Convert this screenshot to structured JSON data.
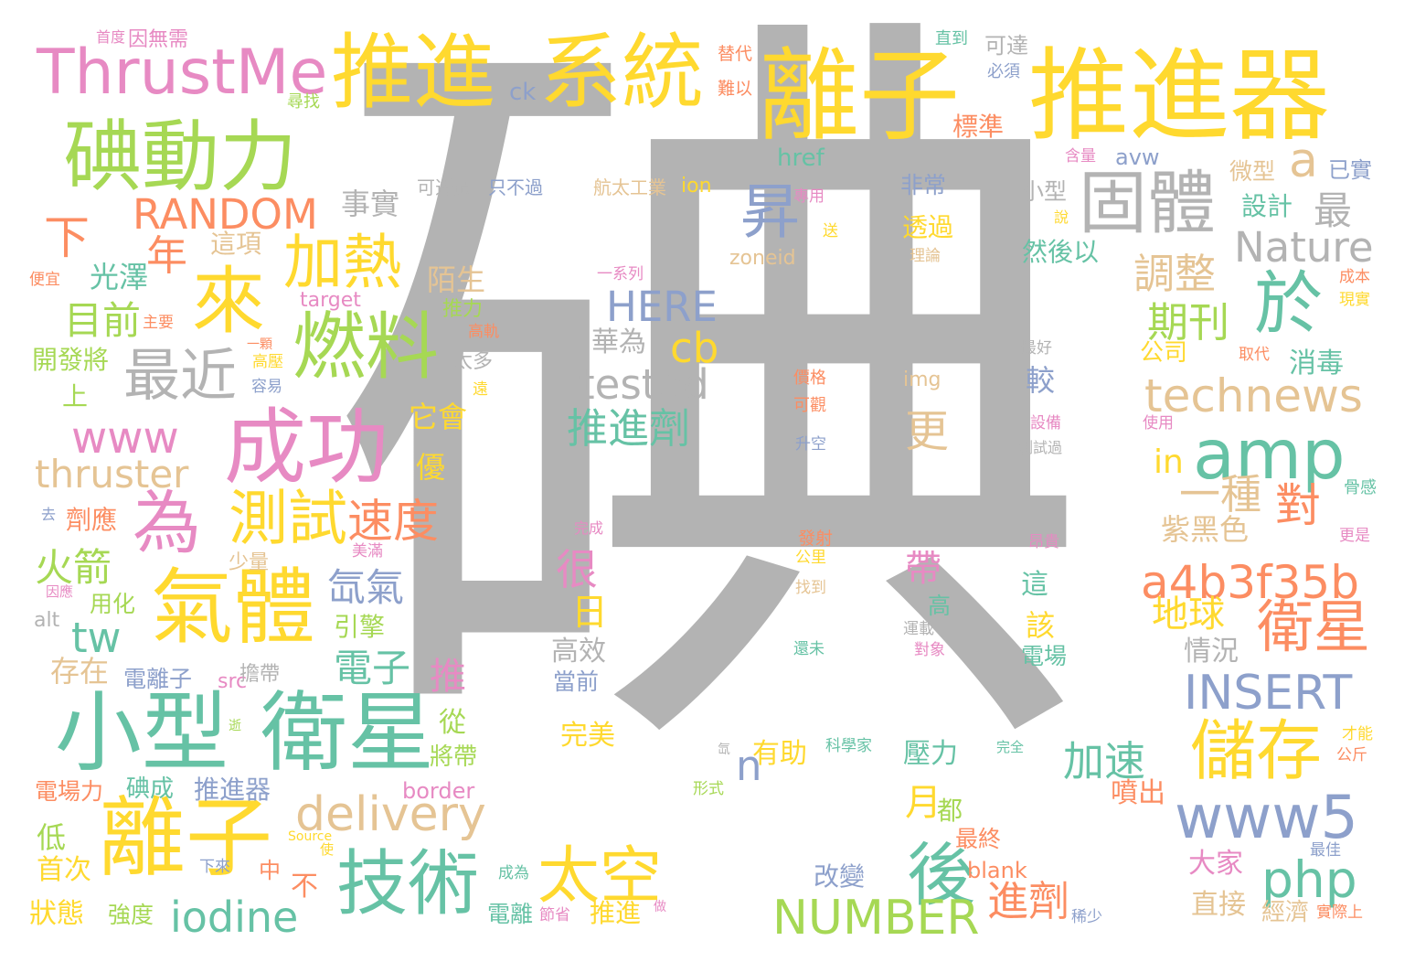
{
  "palette": {
    "gray": "#b3b3b3",
    "yellow": "#ffd92f",
    "green": "#a6d854",
    "teal": "#66c2a5",
    "orange": "#fc8d62",
    "blue": "#8da0cb",
    "pink": "#e78ac3",
    "tan": "#e5c494"
  },
  "words": [
    {
      "text": "碘",
      "color": "gray"
    },
    {
      "text": "離子",
      "color": "yellow"
    },
    {
      "text": "推進器",
      "color": "yellow"
    },
    {
      "text": "推進",
      "color": "yellow"
    },
    {
      "text": "系統",
      "color": "yellow"
    },
    {
      "text": "ThrustMe",
      "color": "pink"
    },
    {
      "text": "碘動力",
      "color": "green"
    },
    {
      "text": "固體",
      "color": "gray"
    },
    {
      "text": "小型",
      "color": "teal"
    },
    {
      "text": "衛星",
      "color": "teal"
    },
    {
      "text": "離子",
      "color": "yellow"
    },
    {
      "text": "成功",
      "color": "pink"
    },
    {
      "text": "氣體",
      "color": "yellow"
    },
    {
      "text": "燃料",
      "color": "green"
    },
    {
      "text": "來",
      "color": "yellow"
    },
    {
      "text": "加熱",
      "color": "yellow"
    },
    {
      "text": "最近",
      "color": "gray"
    },
    {
      "text": "為",
      "color": "pink"
    },
    {
      "text": "測試",
      "color": "yellow"
    },
    {
      "text": "速度",
      "color": "orange"
    },
    {
      "text": "技術",
      "color": "teal"
    },
    {
      "text": "太空",
      "color": "yellow"
    },
    {
      "text": "後",
      "color": "teal"
    },
    {
      "text": "儲存",
      "color": "yellow"
    },
    {
      "text": "衛星",
      "color": "orange"
    },
    {
      "text": "amp",
      "color": "teal"
    },
    {
      "text": "於",
      "color": "teal"
    },
    {
      "text": "昇",
      "color": "blue"
    },
    {
      "text": "a",
      "color": "tan"
    },
    {
      "text": "www5",
      "color": "blue"
    },
    {
      "text": "php",
      "color": "teal"
    },
    {
      "text": "a4b3f35b",
      "color": "orange"
    },
    {
      "text": "technews",
      "color": "tan"
    },
    {
      "text": "Nature",
      "color": "gray"
    },
    {
      "text": "INSERT",
      "color": "blue"
    },
    {
      "text": "NUMBER",
      "color": "green"
    },
    {
      "text": "delivery",
      "color": "tan"
    },
    {
      "text": "iodine",
      "color": "teal"
    },
    {
      "text": "RANDOM",
      "color": "orange"
    },
    {
      "text": "www",
      "color": "pink"
    },
    {
      "text": "thruster",
      "color": "tan"
    },
    {
      "text": "tested",
      "color": "gray"
    },
    {
      "text": "HERE",
      "color": "blue"
    },
    {
      "text": "cb",
      "color": "yellow"
    },
    {
      "text": "tw",
      "color": "teal"
    },
    {
      "text": "n",
      "color": "blue"
    },
    {
      "text": "推進劑",
      "color": "teal"
    },
    {
      "text": "對",
      "color": "orange"
    },
    {
      "text": "一種",
      "color": "tan"
    },
    {
      "text": "調整",
      "color": "tan"
    },
    {
      "text": "期刊",
      "color": "green"
    },
    {
      "text": "加速",
      "color": "teal"
    },
    {
      "text": "進劑",
      "color": "orange"
    },
    {
      "text": "下",
      "color": "orange"
    },
    {
      "text": "年",
      "color": "orange"
    },
    {
      "text": "目前",
      "color": "green"
    },
    {
      "text": "火箭",
      "color": "green"
    },
    {
      "text": "氙氣",
      "color": "blue"
    },
    {
      "text": "電子",
      "color": "teal"
    },
    {
      "text": "推",
      "color": "pink"
    },
    {
      "text": "地球",
      "color": "yellow"
    },
    {
      "text": "紫黑色",
      "color": "tan"
    },
    {
      "text": "更",
      "color": "tan"
    },
    {
      "text": "月",
      "color": "yellow"
    },
    {
      "text": "很",
      "color": "pink"
    },
    {
      "text": "日",
      "color": "yellow"
    },
    {
      "text": "ck",
      "color": "blue"
    },
    {
      "text": "href",
      "color": "teal"
    },
    {
      "text": "ion",
      "color": "yellow"
    },
    {
      "text": "avw",
      "color": "blue"
    },
    {
      "text": "zoneid",
      "color": "tan"
    },
    {
      "text": "img",
      "color": "tan"
    },
    {
      "text": "target",
      "color": "pink"
    },
    {
      "text": "src",
      "color": "pink"
    },
    {
      "text": "alt",
      "color": "gray"
    },
    {
      "text": "border",
      "color": "pink"
    },
    {
      "text": "blank",
      "color": "orange"
    },
    {
      "text": "in",
      "color": "yellow"
    },
    {
      "text": "最",
      "color": "gray"
    },
    {
      "text": "事實",
      "color": "gray"
    },
    {
      "text": "這項",
      "color": "tan"
    },
    {
      "text": "光澤",
      "color": "teal"
    },
    {
      "text": "開發將",
      "color": "green"
    },
    {
      "text": "上",
      "color": "green"
    },
    {
      "text": "劑應",
      "color": "orange"
    },
    {
      "text": "用化",
      "color": "green"
    },
    {
      "text": "存在",
      "color": "tan"
    },
    {
      "text": "電離子",
      "color": "blue"
    },
    {
      "text": "擔帶",
      "color": "gray"
    },
    {
      "text": "碘成",
      "color": "teal"
    },
    {
      "text": "推進器",
      "color": "blue"
    },
    {
      "text": "電場力",
      "color": "orange"
    },
    {
      "text": "低",
      "color": "green"
    },
    {
      "text": "首次",
      "color": "yellow"
    },
    {
      "text": "狀態",
      "color": "yellow"
    },
    {
      "text": "強度",
      "color": "green"
    },
    {
      "text": "不",
      "color": "orange"
    },
    {
      "text": "中",
      "color": "orange"
    },
    {
      "text": "電離",
      "color": "teal"
    },
    {
      "text": "推進",
      "color": "yellow"
    },
    {
      "text": "引擎",
      "color": "green"
    },
    {
      "text": "從",
      "color": "green"
    },
    {
      "text": "將帶",
      "color": "green"
    },
    {
      "text": "優",
      "color": "yellow"
    },
    {
      "text": "它會",
      "color": "yellow"
    },
    {
      "text": "陌生",
      "color": "tan"
    },
    {
      "text": "推力",
      "color": "green"
    },
    {
      "text": "華為",
      "color": "gray"
    },
    {
      "text": "太多",
      "color": "gray"
    },
    {
      "text": "高效",
      "color": "gray"
    },
    {
      "text": "當前",
      "color": "blue"
    },
    {
      "text": "完美",
      "color": "yellow"
    },
    {
      "text": "有助",
      "color": "yellow"
    },
    {
      "text": "壓力",
      "color": "teal"
    },
    {
      "text": "帶",
      "color": "pink"
    },
    {
      "text": "都",
      "color": "green"
    },
    {
      "text": "高",
      "color": "teal"
    },
    {
      "text": "這",
      "color": "teal"
    },
    {
      "text": "該",
      "color": "yellow"
    },
    {
      "text": "電場",
      "color": "teal"
    },
    {
      "text": "較",
      "color": "blue"
    },
    {
      "text": "最終",
      "color": "orange"
    },
    {
      "text": "改變",
      "color": "blue"
    },
    {
      "text": "噴出",
      "color": "orange"
    },
    {
      "text": "情況",
      "color": "gray"
    },
    {
      "text": "大家",
      "color": "pink"
    },
    {
      "text": "直接",
      "color": "tan"
    },
    {
      "text": "經濟",
      "color": "tan"
    },
    {
      "text": "消毒",
      "color": "teal"
    },
    {
      "text": "公司",
      "color": "yellow"
    },
    {
      "text": "微型",
      "color": "tan"
    },
    {
      "text": "設計",
      "color": "teal"
    },
    {
      "text": "小型",
      "color": "gray"
    },
    {
      "text": "然後以",
      "color": "teal"
    },
    {
      "text": "透過",
      "color": "yellow"
    },
    {
      "text": "非常",
      "color": "blue"
    },
    {
      "text": "標準",
      "color": "orange"
    },
    {
      "text": "可達",
      "color": "gray"
    },
    {
      "text": "航太工業",
      "color": "tan"
    },
    {
      "text": "只不過",
      "color": "blue"
    },
    {
      "text": "可透過",
      "color": "gray"
    },
    {
      "text": "尋找",
      "color": "green"
    },
    {
      "text": "首度",
      "color": "pink"
    },
    {
      "text": "因無需",
      "color": "pink"
    },
    {
      "text": "替代",
      "color": "orange"
    },
    {
      "text": "難以",
      "color": "orange"
    },
    {
      "text": "直到",
      "color": "teal"
    },
    {
      "text": "必須",
      "color": "blue"
    },
    {
      "text": "含量",
      "color": "pink"
    },
    {
      "text": "已實",
      "color": "blue"
    },
    {
      "text": "專用",
      "color": "pink"
    },
    {
      "text": "送",
      "color": "yellow"
    },
    {
      "text": "說",
      "color": "yellow"
    },
    {
      "text": "理論",
      "color": "tan"
    },
    {
      "text": "一系列",
      "color": "pink"
    },
    {
      "text": "成本",
      "color": "orange"
    },
    {
      "text": "現實",
      "color": "yellow"
    },
    {
      "text": "便宜",
      "color": "orange"
    },
    {
      "text": "主要",
      "color": "orange"
    },
    {
      "text": "高軌",
      "color": "orange"
    },
    {
      "text": "一顆",
      "color": "orange"
    },
    {
      "text": "高壓",
      "color": "yellow"
    },
    {
      "text": "容易",
      "color": "blue"
    },
    {
      "text": "遠",
      "color": "yellow"
    },
    {
      "text": "最好",
      "color": "gray"
    },
    {
      "text": "價格",
      "color": "orange"
    },
    {
      "text": "可觀",
      "color": "orange"
    },
    {
      "text": "取代",
      "color": "orange"
    },
    {
      "text": "設備",
      "color": "pink"
    },
    {
      "text": "測試過",
      "color": "gray"
    },
    {
      "text": "使用",
      "color": "pink"
    },
    {
      "text": "升空",
      "color": "blue"
    },
    {
      "text": "骨感",
      "color": "teal"
    },
    {
      "text": "去",
      "color": "blue"
    },
    {
      "text": "完成",
      "color": "pink"
    },
    {
      "text": "少量",
      "color": "tan"
    },
    {
      "text": "美滿",
      "color": "pink"
    },
    {
      "text": "因應",
      "color": "pink"
    },
    {
      "text": "發射",
      "color": "orange"
    },
    {
      "text": "公里",
      "color": "yellow"
    },
    {
      "text": "昂貴",
      "color": "pink"
    },
    {
      "text": "更是",
      "color": "pink"
    },
    {
      "text": "找到",
      "color": "tan"
    },
    {
      "text": "運載",
      "color": "gray"
    },
    {
      "text": "對象",
      "color": "pink"
    },
    {
      "text": "還未",
      "color": "teal"
    },
    {
      "text": "逝",
      "color": "green"
    },
    {
      "text": "氙",
      "color": "gray"
    },
    {
      "text": "科學家",
      "color": "teal"
    },
    {
      "text": "完全",
      "color": "teal"
    },
    {
      "text": "才能",
      "color": "yellow"
    },
    {
      "text": "公斤",
      "color": "orange"
    },
    {
      "text": "形式",
      "color": "green"
    },
    {
      "text": "Source",
      "color": "yellow"
    },
    {
      "text": "下來",
      "color": "blue"
    },
    {
      "text": "使",
      "color": "yellow"
    },
    {
      "text": "成為",
      "color": "teal"
    },
    {
      "text": "節省",
      "color": "pink"
    },
    {
      "text": "做",
      "color": "pink"
    },
    {
      "text": "稀少",
      "color": "blue"
    },
    {
      "text": "最佳",
      "color": "blue"
    },
    {
      "text": "實際上",
      "color": "orange"
    }
  ]
}
